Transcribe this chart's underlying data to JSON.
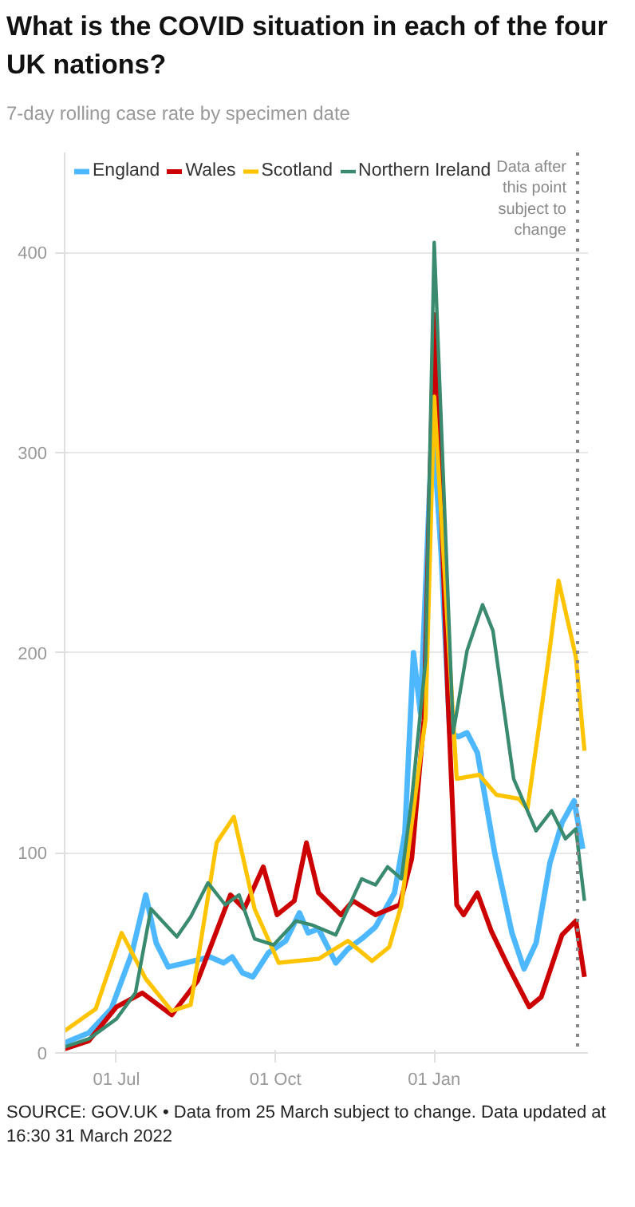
{
  "chart_data": {
    "type": "line",
    "title": "What is the COVID situation in each of the four UK nations?",
    "subtitle": "7-day rolling case rate by specimen date",
    "annotations": [
      "SOURCE: GOV.UK • Data from 25 March subject to change. Data updated at 16:30 31 March 2022"
    ],
    "xlim": [
      "2021-06-01",
      "2022-03-31"
    ],
    "xticks": [
      {
        "value": "2021-07-01",
        "label": "01 Jul"
      },
      {
        "value": "2021-10-01",
        "label": "01 Oct"
      },
      {
        "value": "2022-01-01",
        "label": "01 Jan"
      }
    ],
    "ylim": [
      0,
      450
    ],
    "yticks": [
      0,
      100,
      200,
      300,
      400
    ],
    "grid": "y",
    "legend": "top left",
    "line_style": "solid",
    "marker": "none",
    "ref_lines": [
      {
        "axis": "x",
        "value": "2022-03-25",
        "label": "Data after this point subject to change",
        "color": "#888888",
        "line_style": "dotted"
      }
    ],
    "series": [
      {
        "name": "England",
        "color": "#4db8ff",
        "x": [
          "2021-06-01",
          "2021-06-15",
          "2021-06-28",
          "2021-07-10",
          "2021-07-18",
          "2021-07-24",
          "2021-07-31",
          "2021-08-10",
          "2021-08-24",
          "2021-09-01",
          "2021-09-06",
          "2021-09-12",
          "2021-09-18",
          "2021-09-27",
          "2021-10-07",
          "2021-10-15",
          "2021-10-20",
          "2021-10-26",
          "2021-11-05",
          "2021-11-12",
          "2021-11-20",
          "2021-11-28",
          "2021-12-09",
          "2021-12-15",
          "2021-12-20",
          "2021-12-24",
          "2021-12-31",
          "2022-01-05",
          "2022-01-10",
          "2022-01-15",
          "2022-01-20",
          "2022-01-26",
          "2022-02-05",
          "2022-02-15",
          "2022-02-22",
          "2022-03-01",
          "2022-03-09",
          "2022-03-16",
          "2022-03-23",
          "2022-03-28"
        ],
        "values": [
          5,
          10,
          22,
          50,
          79,
          55,
          43,
          45,
          48,
          45,
          48,
          40,
          38,
          50,
          56,
          70,
          60,
          62,
          45,
          52,
          57,
          63,
          80,
          110,
          200,
          170,
          316,
          250,
          160,
          158,
          160,
          150,
          100,
          60,
          42,
          55,
          95,
          115,
          126,
          102
        ]
      },
      {
        "name": "Wales",
        "color": "#cc0000",
        "x": [
          "2021-06-01",
          "2021-06-15",
          "2021-07-01",
          "2021-07-16",
          "2021-08-02",
          "2021-08-17",
          "2021-09-05",
          "2021-09-13",
          "2021-09-24",
          "2021-10-02",
          "2021-10-12",
          "2021-10-19",
          "2021-10-26",
          "2021-11-08",
          "2021-11-15",
          "2021-11-28",
          "2021-12-12",
          "2021-12-19",
          "2021-12-26",
          "2022-01-01",
          "2022-01-09",
          "2022-01-14",
          "2022-01-18",
          "2022-01-26",
          "2022-02-03",
          "2022-02-13",
          "2022-02-25",
          "2022-03-04",
          "2022-03-16",
          "2022-03-24",
          "2022-03-29"
        ],
        "values": [
          2,
          6,
          23,
          30,
          19,
          36,
          79,
          72,
          93,
          69,
          76,
          105,
          80,
          69,
          76,
          69,
          74,
          97,
          166,
          369,
          176,
          74,
          69,
          80,
          61,
          43,
          23,
          28,
          59,
          66,
          38
        ]
      },
      {
        "name": "Scotland",
        "color": "#ffc400",
        "x": [
          "2021-06-01",
          "2021-06-19",
          "2021-07-04",
          "2021-07-18",
          "2021-08-02",
          "2021-08-13",
          "2021-08-28",
          "2021-09-07",
          "2021-09-19",
          "2021-10-03",
          "2021-10-14",
          "2021-10-26",
          "2021-11-12",
          "2021-11-26",
          "2021-12-06",
          "2021-12-13",
          "2021-12-22",
          "2021-12-27",
          "2022-01-01",
          "2022-01-14",
          "2022-01-27",
          "2022-02-06",
          "2022-02-19",
          "2022-02-24",
          "2022-03-08",
          "2022-03-14",
          "2022-03-24",
          "2022-03-29"
        ],
        "values": [
          11,
          22,
          60,
          37,
          21,
          24,
          105,
          118,
          72,
          45,
          46,
          47,
          56,
          46,
          53,
          74,
          135,
          167,
          328,
          137,
          139,
          129,
          127,
          122,
          196,
          236,
          198,
          151
        ]
      },
      {
        "name": "Northern Ireland",
        "color": "#3a8a6e",
        "x": [
          "2021-06-01",
          "2021-06-15",
          "2021-07-01",
          "2021-07-12",
          "2021-07-21",
          "2021-08-05",
          "2021-08-13",
          "2021-08-23",
          "2021-09-02",
          "2021-09-10",
          "2021-09-19",
          "2021-09-30",
          "2021-10-13",
          "2021-10-22",
          "2021-11-05",
          "2021-11-20",
          "2021-11-28",
          "2021-12-05",
          "2021-12-13",
          "2021-12-19",
          "2021-12-27",
          "2022-01-01",
          "2022-01-12",
          "2022-01-20",
          "2022-01-29",
          "2022-02-04",
          "2022-02-16",
          "2022-03-01",
          "2022-03-10",
          "2022-03-18",
          "2022-03-24",
          "2022-03-29"
        ],
        "values": [
          3,
          7,
          17,
          30,
          72,
          58,
          68,
          85,
          74,
          79,
          57,
          54,
          66,
          64,
          59,
          87,
          84,
          93,
          87,
          127,
          196,
          405,
          160,
          201,
          224,
          211,
          137,
          111,
          121,
          107,
          112,
          76
        ]
      }
    ]
  }
}
